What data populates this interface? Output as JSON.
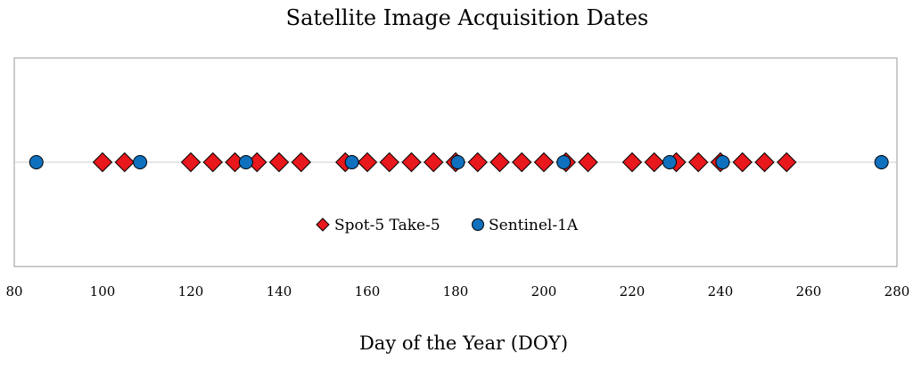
{
  "chart_data": {
    "type": "scatter",
    "title": "Satellite Image Acquisition Dates",
    "xlabel": "Day of the Year (DOY)",
    "ylabel": "",
    "xlim": [
      80,
      280
    ],
    "xticks": [
      "80",
      "100",
      "120",
      "140",
      "160",
      "180",
      "200",
      "220",
      "240",
      "260",
      "280"
    ],
    "grid": false,
    "legend_position": "center",
    "series": [
      {
        "name": "Spot-5 Take-5",
        "marker": "diamond",
        "color": "#e8181c",
        "x": [
          100,
          105,
          120,
          125,
          130,
          135,
          140,
          145,
          155,
          160,
          165,
          170,
          175,
          180,
          185,
          190,
          195,
          200,
          205,
          210,
          220,
          225,
          230,
          235,
          240,
          245,
          250,
          255
        ]
      },
      {
        "name": "Sentinel-1A",
        "marker": "circle",
        "color": "#0f70bd",
        "x": [
          85,
          108.5,
          132.5,
          156.5,
          180.5,
          204.5,
          228.5,
          240.5,
          276.5
        ]
      }
    ]
  }
}
